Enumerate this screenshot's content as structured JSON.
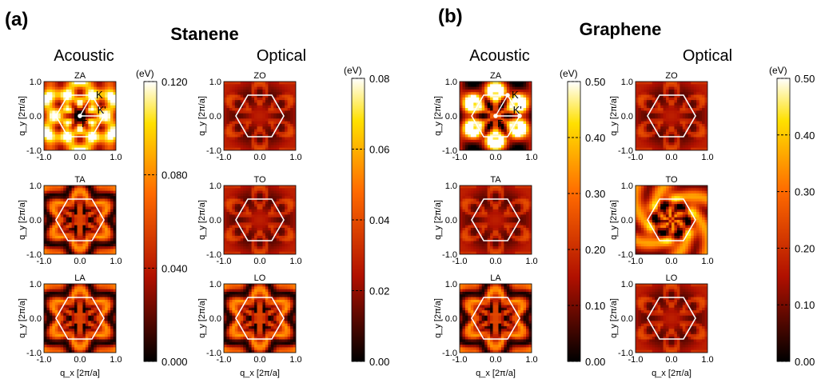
{
  "figure": {
    "a_label": "(a)",
    "b_label": "(b)",
    "stanene_title": "Stanene",
    "graphene_title": "Graphene",
    "acoustic": "Acoustic",
    "optical": "Optical",
    "xlabel": "q_x [2π/a]",
    "ylabel": "q_y [2π/a]",
    "unit": "(eV)",
    "ticks": [
      "-1.0",
      "0.0",
      "1.0"
    ]
  },
  "colors": {
    "map_low": "#000000",
    "map_mid": "#cc2200",
    "map_high": "#ffdd00",
    "map_top": "#ffffff",
    "hexagon": "#ffffff"
  },
  "chart_data": [
    {
      "type": "heatmap",
      "group": "(a) Stanene",
      "xlabel": "q_x [2π/a]",
      "ylabel": "q_y [2π/a]",
      "xlim": [
        -1.0,
        1.0
      ],
      "ylim": [
        -1.0,
        1.0
      ],
      "xticks": [
        "-1.0",
        "0.0",
        "1.0"
      ],
      "yticks": [
        "-1.0",
        "0.0",
        "1.0"
      ],
      "colorbars": [
        {
          "column": "Acoustic",
          "unit": "(eV)",
          "range": [
            0.0,
            0.12
          ],
          "ticks": [
            "0.000",
            "0.040",
            "0.080",
            "0.120"
          ]
        },
        {
          "column": "Optical",
          "unit": "(eV)",
          "range": [
            0.0,
            0.08
          ],
          "ticks": [
            "0.00",
            "0.02",
            "0.04",
            "0.06",
            "0.08"
          ]
        }
      ],
      "panels": [
        {
          "column": "Acoustic",
          "mode": "ZA",
          "points": [
            "K",
            "K'",
            "Γ"
          ]
        },
        {
          "column": "Acoustic",
          "mode": "TA"
        },
        {
          "column": "Acoustic",
          "mode": "LA"
        },
        {
          "column": "Optical",
          "mode": "ZO"
        },
        {
          "column": "Optical",
          "mode": "TO"
        },
        {
          "column": "Optical",
          "mode": "LO"
        }
      ]
    },
    {
      "type": "heatmap",
      "group": "(b) Graphene",
      "xlabel": "q_x [2π/a]",
      "ylabel": "q_y [2π/a]",
      "xlim": [
        -1.0,
        1.0
      ],
      "ylim": [
        -1.0,
        1.0
      ],
      "xticks": [
        "-1.0",
        "0.0",
        "1.0"
      ],
      "yticks": [
        "-1.0",
        "0.0",
        "1.0"
      ],
      "colorbars": [
        {
          "column": "Acoustic",
          "unit": "(eV)",
          "range": [
            0.0,
            0.5
          ],
          "ticks": [
            "0.00",
            "0.10",
            "0.20",
            "0.30",
            "0.40",
            "0.50"
          ]
        },
        {
          "column": "Optical",
          "unit": "(eV)",
          "range": [
            0.0,
            0.5
          ],
          "ticks": [
            "0.00",
            "0.10",
            "0.20",
            "0.30",
            "0.40",
            "0.50"
          ]
        }
      ],
      "panels": [
        {
          "column": "Acoustic",
          "mode": "ZA",
          "points": [
            "K",
            "K'",
            "Γ"
          ]
        },
        {
          "column": "Acoustic",
          "mode": "TA"
        },
        {
          "column": "Acoustic",
          "mode": "LA"
        },
        {
          "column": "Optical",
          "mode": "ZO"
        },
        {
          "column": "Optical",
          "mode": "TO"
        },
        {
          "column": "Optical",
          "mode": "LO"
        }
      ]
    }
  ]
}
